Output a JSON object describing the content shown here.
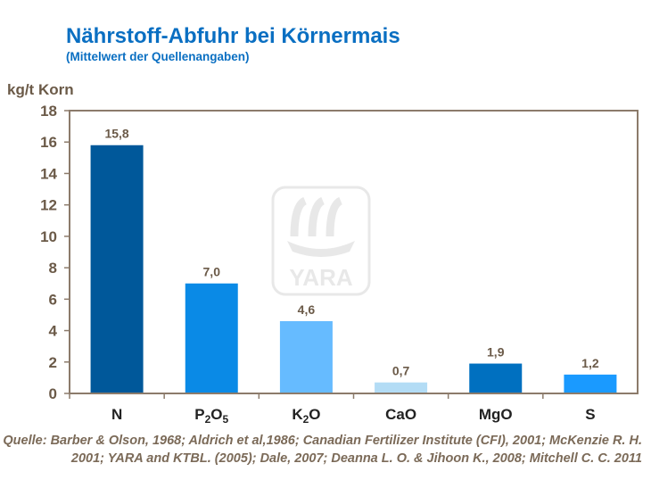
{
  "title": "Nährstoff-Abfuhr bei Körnermais",
  "subtitle": "(Mittelwert der Quellenangaben)",
  "source": "Quelle: Barber & Olson, 1968; Aldrich et al,1986; Canadian Fertilizer Institute (CFI), 2001; McKenzie R. H. 2001; YARA and KTBL. (2005); Dale, 2007; Deanna L. O. & Jihoon K.,  2008; Mitchell C. C. 2011",
  "watermark": "YARA",
  "chart_data": {
    "type": "bar",
    "title": "Nährstoff-Abfuhr bei Körnermais",
    "ylabel": "kg/t Korn",
    "xlabel": "",
    "ylim": [
      0,
      18
    ],
    "yticks": [
      0,
      2,
      4,
      6,
      8,
      10,
      12,
      14,
      16,
      18
    ],
    "grid": false,
    "categories": [
      {
        "base": "N",
        "sub1": "",
        "mid": "",
        "sub2": ""
      },
      {
        "base": "P",
        "sub1": "2",
        "mid": "O",
        "sub2": "5"
      },
      {
        "base": "K",
        "sub1": "2",
        "mid": "O",
        "sub2": ""
      },
      {
        "base": "CaO",
        "sub1": "",
        "mid": "",
        "sub2": ""
      },
      {
        "base": "MgO",
        "sub1": "",
        "mid": "",
        "sub2": ""
      },
      {
        "base": "S",
        "sub1": "",
        "mid": "",
        "sub2": ""
      }
    ],
    "values": [
      15.8,
      7.0,
      4.6,
      0.7,
      1.9,
      1.2
    ],
    "data_labels": [
      "15,8",
      "7,0",
      "4,6",
      "0,7",
      "1,9",
      "1,2"
    ],
    "colors": [
      "#00589a",
      "#0a8ae6",
      "#66bbff",
      "#b3dcf5",
      "#0070c0",
      "#1a9aff"
    ],
    "axis_color": "#8c7b6b",
    "text_color": "#6b5a48"
  }
}
